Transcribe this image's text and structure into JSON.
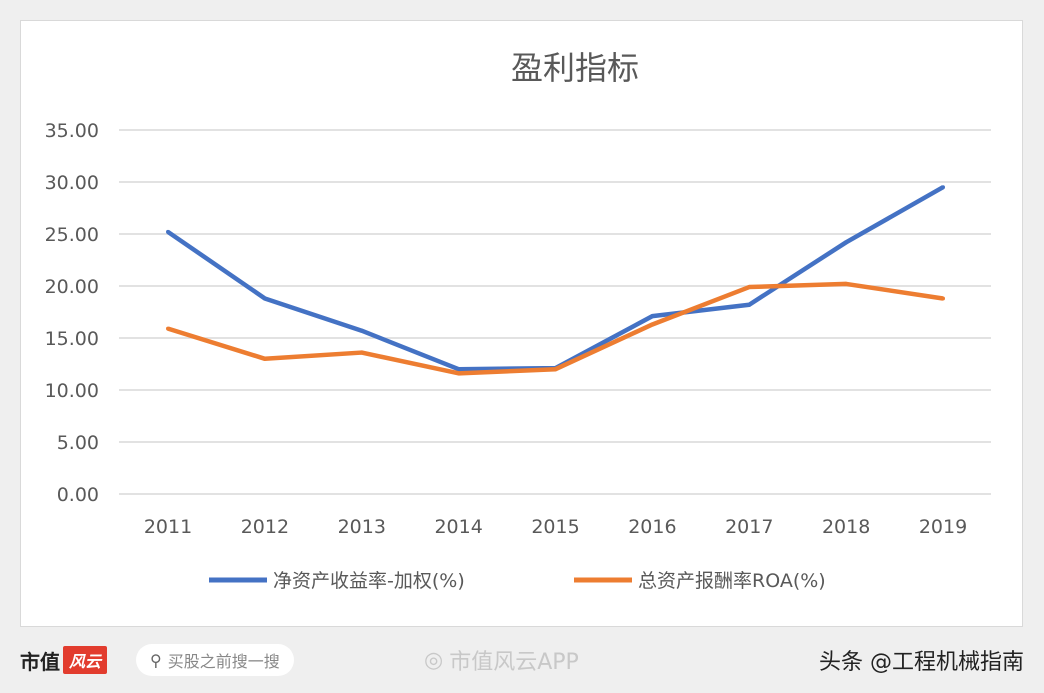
{
  "chart_data": {
    "type": "line",
    "title": "盈利指标",
    "categories": [
      "2011",
      "2012",
      "2013",
      "2014",
      "2015",
      "2016",
      "2017",
      "2018",
      "2019"
    ],
    "series": [
      {
        "name": "净资产收益率-加权(%)",
        "color": "#4472c4",
        "values": [
          25.2,
          18.8,
          15.7,
          12.0,
          12.1,
          17.1,
          18.2,
          24.2,
          29.5
        ]
      },
      {
        "name": "总资产报酬率ROA(%)",
        "color": "#ed7d31",
        "values": [
          15.9,
          13.0,
          13.6,
          11.6,
          12.0,
          16.3,
          19.9,
          20.2,
          18.8
        ]
      }
    ],
    "yticks": [
      "0.00",
      "5.00",
      "10.00",
      "15.00",
      "20.00",
      "25.00",
      "30.00",
      "35.00"
    ],
    "ylim": [
      0,
      35
    ],
    "grid": true,
    "legend": "bottom"
  },
  "footer": {
    "brand": "市值",
    "brand_logo": "风云",
    "search_placeholder": "买股之前搜一搜",
    "watermark": "市值风云APP",
    "source": "头条 @工程机械指南"
  }
}
